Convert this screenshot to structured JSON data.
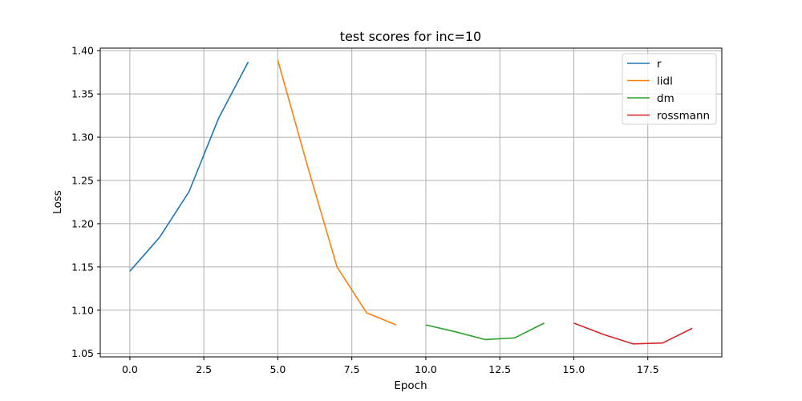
{
  "chart_data": {
    "type": "line",
    "title": "test scores for inc=10",
    "xlabel": "Epoch",
    "ylabel": "Loss",
    "xlim": [
      -1,
      20
    ],
    "ylim": [
      1.046,
      1.403
    ],
    "xticks": [
      0.0,
      2.5,
      5.0,
      7.5,
      10.0,
      12.5,
      15.0,
      17.5
    ],
    "xtick_labels": [
      "0.0",
      "2.5",
      "5.0",
      "7.5",
      "10.0",
      "12.5",
      "15.0",
      "17.5"
    ],
    "yticks": [
      1.05,
      1.1,
      1.15,
      1.2,
      1.25,
      1.3,
      1.35,
      1.4
    ],
    "ytick_labels": [
      "1.05",
      "1.10",
      "1.15",
      "1.20",
      "1.25",
      "1.30",
      "1.35",
      "1.40"
    ],
    "grid": true,
    "legend_position": "top-right",
    "series": [
      {
        "name": "r",
        "color": "#1f77b4",
        "x": [
          0,
          1,
          2,
          3,
          4
        ],
        "values": [
          1.145,
          1.184,
          1.237,
          1.322,
          1.387
        ]
      },
      {
        "name": "lidl",
        "color": "#ff7f0e",
        "x": [
          5,
          6,
          7,
          8,
          9
        ],
        "values": [
          1.389,
          1.267,
          1.15,
          1.097,
          1.083
        ]
      },
      {
        "name": "dm",
        "color": "#2ca02c",
        "x": [
          10,
          11,
          12,
          13,
          14
        ],
        "values": [
          1.083,
          1.075,
          1.066,
          1.068,
          1.085
        ]
      },
      {
        "name": "rossmann",
        "color": "#d62728",
        "x": [
          15,
          16,
          17,
          18,
          19
        ],
        "values": [
          1.085,
          1.072,
          1.061,
          1.062,
          1.079
        ]
      }
    ]
  }
}
